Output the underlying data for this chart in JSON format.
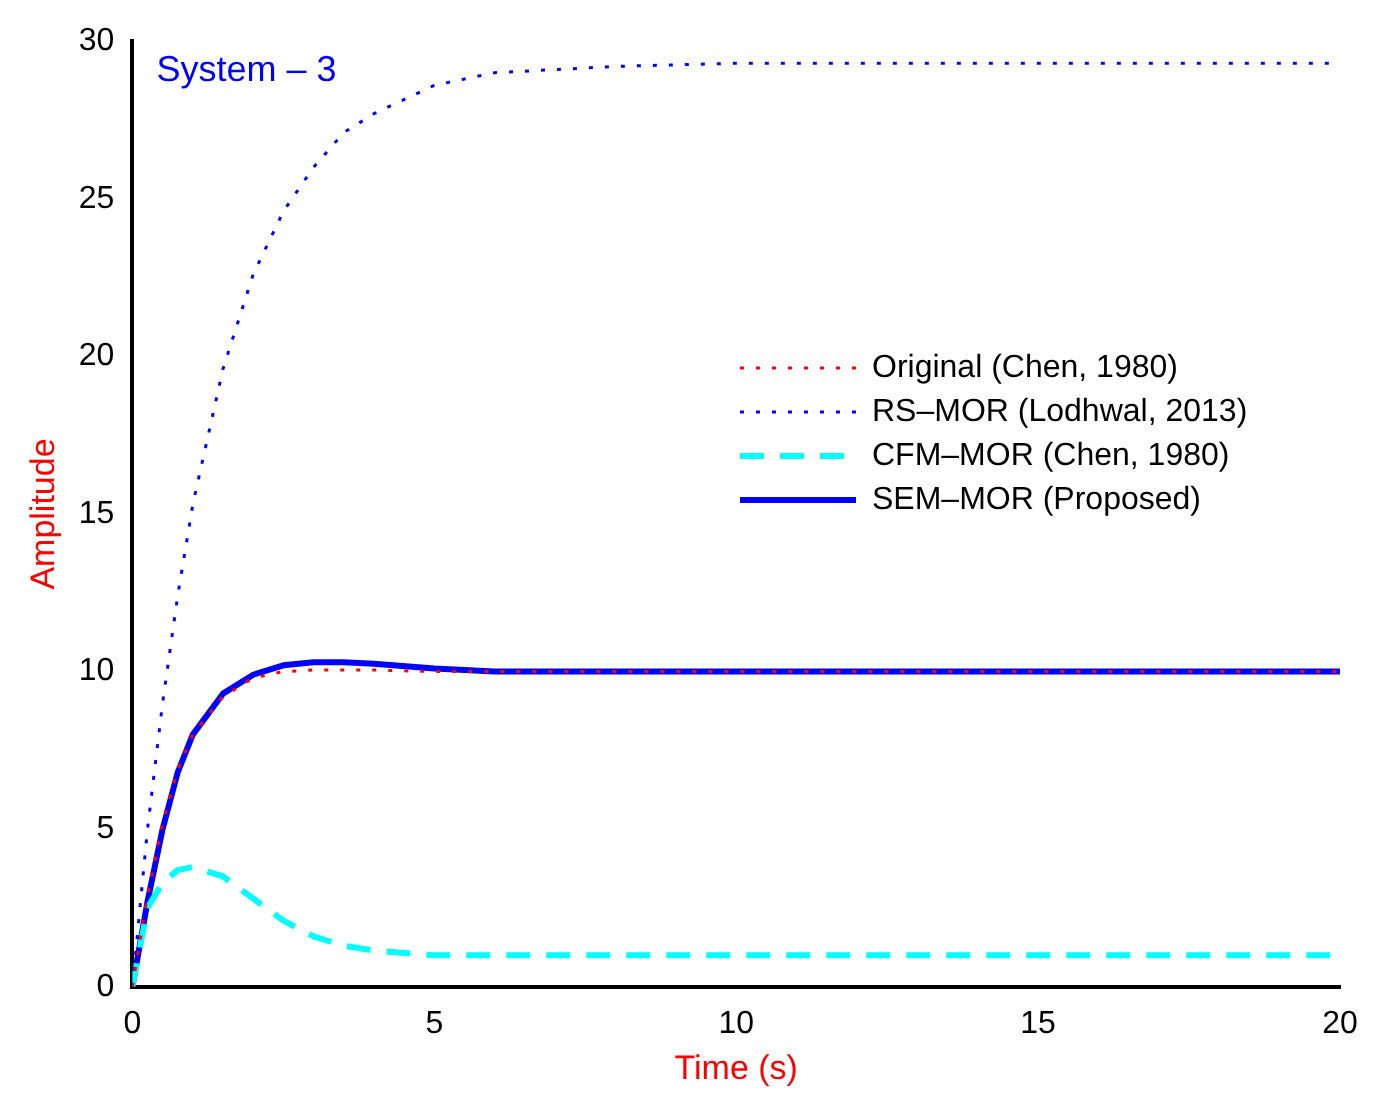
{
  "chart_data": {
    "type": "line",
    "xlabel": "Time (s)",
    "ylabel": "Amplitude",
    "annotations": [
      "System – 3"
    ],
    "x": [
      0,
      0.25,
      0.5,
      0.75,
      1,
      1.5,
      2,
      2.5,
      3,
      3.5,
      4,
      5,
      6,
      7,
      8,
      10,
      12,
      15,
      20
    ],
    "series": [
      {
        "name": "Original (Chen, 1980)",
        "color": "#ff0000",
        "line_style": "dotted",
        "values": [
          0,
          2.9,
          5.2,
          6.9,
          8.0,
          9.2,
          9.8,
          10.0,
          10.05,
          10.05,
          10.05,
          10.0,
          10.0,
          10.0,
          10.0,
          10.0,
          10.0,
          10.0,
          10.0
        ]
      },
      {
        "name": "RS–MOR (Lodhwal, 2013)",
        "color": "#0000ff",
        "line_style": "dotted",
        "values": [
          0,
          5.0,
          9.0,
          12.4,
          15.3,
          19.6,
          22.6,
          24.6,
          26.0,
          27.1,
          27.7,
          28.6,
          29.0,
          29.1,
          29.2,
          29.3,
          29.3,
          29.3,
          29.3
        ]
      },
      {
        "name": "CFM–MOR (Chen, 1980)",
        "color": "#00ffff",
        "line_style": "dashed",
        "values": [
          0,
          2.5,
          3.3,
          3.7,
          3.8,
          3.5,
          2.8,
          2.1,
          1.6,
          1.3,
          1.15,
          1.0,
          1.0,
          1.0,
          1.0,
          1.0,
          1.0,
          1.0,
          1.0
        ]
      },
      {
        "name": "SEM–MOR (Proposed)",
        "color": "#0000ff",
        "line_style": "solid",
        "values": [
          0,
          2.7,
          5.0,
          6.8,
          8.0,
          9.3,
          9.9,
          10.2,
          10.3,
          10.3,
          10.25,
          10.1,
          10.0,
          10.0,
          10.0,
          10.0,
          10.0,
          10.0,
          10.0
        ]
      }
    ],
    "xlim": [
      0,
      20
    ],
    "xticks": [
      0,
      5,
      10,
      15,
      20
    ],
    "ylim": [
      0,
      30
    ],
    "yticks": [
      0,
      5,
      10,
      15,
      20,
      25,
      30
    ],
    "grid": false,
    "legend": "right",
    "marker": "none"
  }
}
